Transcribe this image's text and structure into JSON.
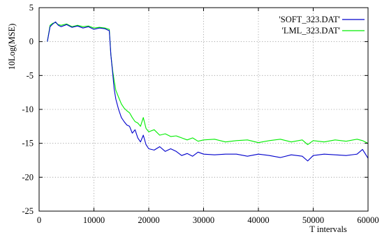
{
  "chart_data": {
    "type": "line",
    "xlabel": "T intervals",
    "ylabel": "10Log(MSE)",
    "xlim": [
      0,
      60000
    ],
    "ylim": [
      -25,
      5
    ],
    "xticks": [
      "0",
      "10000",
      "20000",
      "30000",
      "40000",
      "50000",
      "60000"
    ],
    "yticks": [
      "5",
      "0",
      "-5",
      "-10",
      "-15",
      "-20",
      "-25"
    ],
    "grid": true,
    "legend_position": "top-right",
    "series": [
      {
        "name": "'SOFT_323.DAT'",
        "color": "#0000cc",
        "x": [
          1500,
          2000,
          2500,
          3000,
          3500,
          4000,
          5000,
          6000,
          7000,
          8000,
          9000,
          10000,
          11000,
          12000,
          12800,
          13100,
          13400,
          13700,
          14000,
          14500,
          15000,
          15500,
          16000,
          16500,
          17000,
          17500,
          18000,
          18500,
          19000,
          19500,
          20000,
          21000,
          22000,
          23000,
          24000,
          25000,
          26000,
          27000,
          28000,
          29000,
          30000,
          32000,
          34000,
          36000,
          38000,
          40000,
          42000,
          44000,
          46000,
          48000,
          49000,
          50000,
          52000,
          54000,
          56000,
          58000,
          59000,
          60000
        ],
        "y": [
          0,
          2.2,
          2.6,
          2.9,
          2.4,
          2.2,
          2.5,
          2.1,
          2.3,
          2.0,
          2.2,
          1.8,
          2.0,
          1.9,
          1.6,
          -2.0,
          -4.5,
          -7.0,
          -8.5,
          -10.0,
          -11.2,
          -11.8,
          -12.3,
          -12.5,
          -13.5,
          -13.0,
          -14.2,
          -14.8,
          -13.8,
          -15.2,
          -15.8,
          -16.0,
          -15.5,
          -16.2,
          -15.8,
          -16.2,
          -16.8,
          -16.5,
          -16.9,
          -16.3,
          -16.6,
          -16.7,
          -16.6,
          -16.6,
          -16.9,
          -16.6,
          -16.8,
          -17.1,
          -16.7,
          -16.9,
          -17.6,
          -16.8,
          -16.6,
          -16.7,
          -16.8,
          -16.6,
          -15.9,
          -17.2
        ]
      },
      {
        "name": "'LML_323.DAT'",
        "color": "#00ee00",
        "x": [
          1500,
          2000,
          2500,
          3000,
          3500,
          4000,
          5000,
          6000,
          7000,
          8000,
          9000,
          10000,
          11000,
          12000,
          12800,
          13100,
          13400,
          13700,
          14000,
          14500,
          15000,
          15500,
          16000,
          16500,
          17000,
          17500,
          18000,
          18500,
          19000,
          19500,
          20000,
          21000,
          22000,
          23000,
          24000,
          25000,
          26000,
          27000,
          28000,
          29000,
          30000,
          32000,
          34000,
          36000,
          38000,
          40000,
          42000,
          44000,
          46000,
          48000,
          49000,
          50000,
          52000,
          54000,
          56000,
          58000,
          59000,
          60000
        ],
        "y": [
          0,
          2.4,
          2.7,
          2.8,
          2.5,
          2.4,
          2.6,
          2.2,
          2.4,
          2.2,
          2.3,
          2.0,
          2.1,
          2.0,
          1.8,
          -2.0,
          -4.2,
          -5.8,
          -7.2,
          -8.2,
          -9.2,
          -9.8,
          -10.2,
          -10.5,
          -11.2,
          -11.8,
          -12.0,
          -12.5,
          -11.2,
          -12.8,
          -13.3,
          -13.0,
          -13.8,
          -13.6,
          -14.0,
          -13.9,
          -14.2,
          -14.5,
          -14.2,
          -14.7,
          -14.5,
          -14.4,
          -14.8,
          -14.6,
          -14.5,
          -14.9,
          -14.6,
          -14.4,
          -14.8,
          -14.5,
          -15.2,
          -14.6,
          -14.8,
          -14.5,
          -14.7,
          -14.4,
          -14.6,
          -15.0
        ]
      }
    ]
  }
}
